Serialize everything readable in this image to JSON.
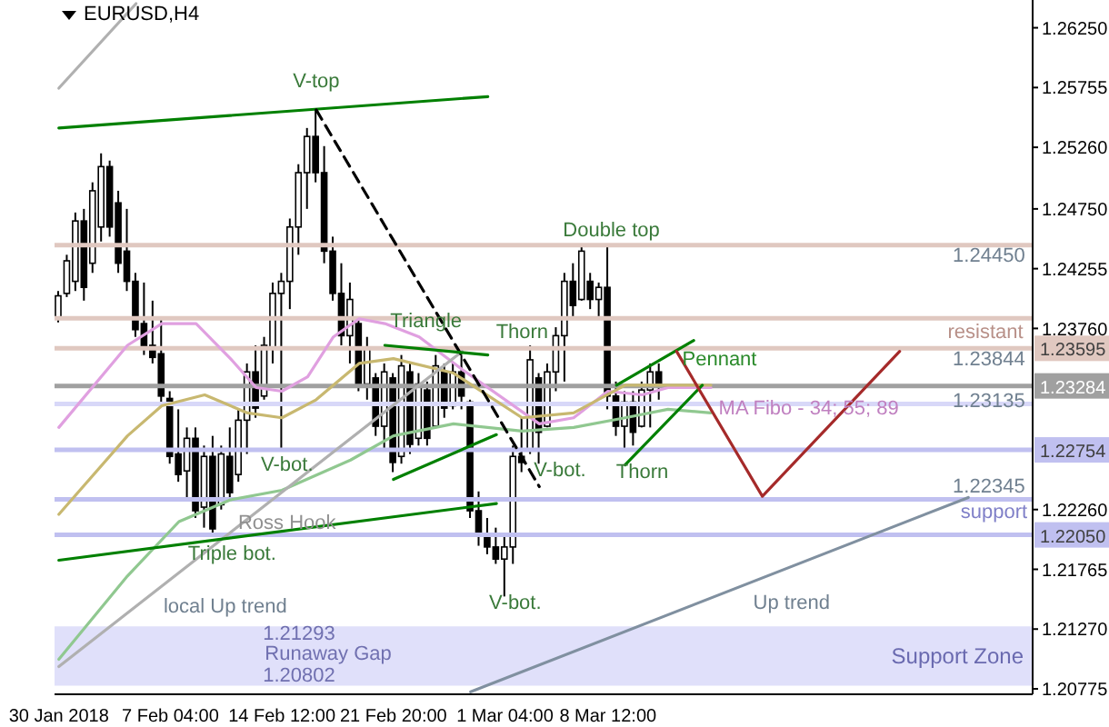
{
  "chart_data": {
    "type": "candlestick",
    "title": "EURUSD,H4",
    "color": "#000000",
    "categories": [
      "30 Jan 2018",
      null,
      null,
      null,
      null,
      null,
      null,
      null,
      null,
      null,
      null,
      null,
      null,
      "7 Feb 04:00",
      null,
      null,
      null,
      null,
      null,
      null,
      null,
      null,
      null,
      null,
      null,
      null,
      "14 Feb 12:00",
      null,
      null,
      null,
      null,
      null,
      null,
      null,
      null,
      null,
      null,
      null,
      null,
      "21 Feb 20:00",
      null,
      null,
      null,
      null,
      null,
      null,
      null,
      null,
      null,
      null,
      null,
      null,
      "1 Mar 04:00",
      null,
      null,
      null,
      null,
      null,
      null,
      null,
      null,
      null,
      null,
      null,
      "8 Mar 12:00",
      null,
      null,
      null,
      null,
      null,
      null,
      null,
      null,
      null,
      null,
      null,
      null,
      null,
      null,
      null,
      null,
      null,
      null,
      null,
      null,
      null,
      null,
      null,
      null,
      null,
      null,
      null,
      null,
      null,
      null,
      null,
      null,
      null,
      null,
      null,
      null,
      null,
      null,
      null,
      null,
      null,
      null,
      null,
      null,
      null,
      null,
      null,
      null,
      null
    ],
    "ohlc": [
      [
        1.2385,
        1.2407,
        1.2381,
        1.2403
      ],
      [
        1.2405,
        1.2437,
        1.2402,
        1.2432
      ],
      [
        1.2415,
        1.2472,
        1.2407,
        1.2465
      ],
      [
        1.2465,
        1.2475,
        1.2399,
        1.241
      ],
      [
        1.243,
        1.2497,
        1.2422,
        1.249
      ],
      [
        1.246,
        1.2521,
        1.2448,
        1.251
      ],
      [
        1.251,
        1.2515,
        1.2452,
        1.246
      ],
      [
        1.248,
        1.249,
        1.2422,
        1.243
      ],
      [
        1.244,
        1.2475,
        1.2407,
        1.2415
      ],
      [
        1.2415,
        1.2422,
        1.2369,
        1.2375
      ],
      [
        1.238,
        1.2414,
        1.2354,
        1.236
      ],
      [
        1.2362,
        1.2399,
        1.2347,
        1.2352
      ],
      [
        1.2355,
        1.2384,
        1.2314,
        1.232
      ],
      [
        1.2318,
        1.2324,
        1.2264,
        1.227
      ],
      [
        1.2272,
        1.2309,
        1.2249,
        1.2255
      ],
      [
        1.2258,
        1.2294,
        1.2234,
        1.2285
      ],
      [
        1.2285,
        1.2294,
        1.2219,
        1.2225
      ],
      [
        1.2228,
        1.2279,
        1.2211,
        1.227
      ],
      [
        1.227,
        1.2287,
        1.2204,
        1.221
      ],
      [
        1.223,
        1.2279,
        1.2226,
        1.2272
      ],
      [
        1.227,
        1.2294,
        1.2234,
        1.224
      ],
      [
        1.2255,
        1.2309,
        1.2249,
        1.23
      ],
      [
        1.23,
        1.2347,
        1.2272,
        1.234
      ],
      [
        1.234,
        1.2362,
        1.2302,
        1.231
      ],
      [
        1.232,
        1.2369,
        1.2317,
        1.2362
      ],
      [
        1.236,
        1.2414,
        1.2347,
        1.2405
      ],
      [
        1.2405,
        1.2422,
        1.2275,
        1.2415
      ],
      [
        1.2415,
        1.2467,
        1.2392,
        1.246
      ],
      [
        1.246,
        1.2512,
        1.2437,
        1.2505
      ],
      [
        1.2505,
        1.2542,
        1.2475,
        1.2535
      ],
      [
        1.2535,
        1.2557,
        1.2497,
        1.2505
      ],
      [
        1.2505,
        1.2527,
        1.243,
        1.244
      ],
      [
        1.244,
        1.2452,
        1.2399,
        1.2405
      ],
      [
        1.2405,
        1.243,
        1.2362,
        1.237
      ],
      [
        1.237,
        1.2414,
        1.2347,
        1.24
      ],
      [
        1.238,
        1.2384,
        1.2324,
        1.233
      ],
      [
        1.233,
        1.2369,
        1.2317,
        1.236
      ],
      [
        1.2335,
        1.2339,
        1.2287,
        1.2295
      ],
      [
        1.2295,
        1.2347,
        1.2276,
        1.234
      ],
      [
        1.2335,
        1.2339,
        1.2257,
        1.2265
      ],
      [
        1.227,
        1.2354,
        1.2264,
        1.2345
      ],
      [
        1.234,
        1.2347,
        1.2272,
        1.228
      ],
      [
        1.2285,
        1.2339,
        1.2279,
        1.233
      ],
      [
        1.2325,
        1.2332,
        1.2279,
        1.2285
      ],
      [
        1.2295,
        1.2354,
        1.2294,
        1.2345
      ],
      [
        1.234,
        1.2347,
        1.2302,
        1.231
      ],
      [
        1.2312,
        1.2347,
        1.2309,
        1.234
      ],
      [
        1.234,
        1.2354,
        1.2309,
        1.232
      ],
      [
        1.2315,
        1.2317,
        1.2219,
        1.2225
      ],
      [
        1.2225,
        1.2241,
        1.2196,
        1.2205
      ],
      [
        1.2205,
        1.2219,
        1.2189,
        1.2195
      ],
      [
        1.2195,
        1.2211,
        1.2181,
        1.2185
      ],
      [
        1.2185,
        1.2204,
        1.2154,
        1.2195
      ],
      [
        1.2195,
        1.2279,
        1.2181,
        1.227
      ],
      [
        1.227,
        1.2302,
        1.2257,
        1.2265
      ],
      [
        1.2275,
        1.2362,
        1.2272,
        1.235
      ],
      [
        1.2335,
        1.2339,
        1.2264,
        1.229
      ],
      [
        1.2295,
        1.2347,
        1.2294,
        1.234
      ],
      [
        1.234,
        1.2377,
        1.2324,
        1.237
      ],
      [
        1.237,
        1.2422,
        1.2332,
        1.2415
      ],
      [
        1.2415,
        1.243,
        1.2384,
        1.2395
      ],
      [
        1.24,
        1.2445,
        1.2399,
        1.244
      ],
      [
        1.2415,
        1.2422,
        1.2392,
        1.24
      ],
      [
        1.24,
        1.2414,
        1.2384,
        1.241
      ],
      [
        1.241,
        1.2445,
        1.2309,
        1.232
      ],
      [
        1.232,
        1.2332,
        1.2287,
        1.2295
      ],
      [
        1.2295,
        1.2324,
        1.2276,
        1.2315
      ],
      [
        1.2315,
        1.2324,
        1.2279,
        1.229
      ],
      [
        1.2295,
        1.2332,
        1.2294,
        1.2325
      ],
      [
        1.2325,
        1.2347,
        1.2294,
        1.234
      ],
      [
        1.234,
        1.2347,
        1.2317,
        1.2328
      ],
      null,
      null,
      null,
      null,
      null,
      null,
      null,
      null,
      null,
      null,
      null,
      null,
      null,
      null,
      null,
      null,
      null,
      null,
      null,
      null,
      null,
      null,
      null,
      null,
      null,
      null,
      null,
      null,
      null,
      null,
      null,
      null,
      null,
      null,
      null,
      null,
      null,
      null,
      null,
      null,
      null,
      null,
      null
    ],
    "series": [
      {
        "type": "line",
        "color": "#e0a0e0",
        "values": [
          1.2294,
          null,
          null,
          null,
          null,
          null,
          null,
          null,
          1.2362,
          null,
          null,
          null,
          1.238,
          null,
          null,
          null,
          1.238,
          null,
          null,
          null,
          1.2351,
          null,
          null,
          1.2327,
          null,
          null,
          1.2324,
          null,
          null,
          1.2336,
          null,
          null,
          1.2369,
          null,
          null,
          1.2384,
          null,
          null,
          1.238,
          null,
          null,
          null,
          1.2369,
          null,
          null,
          null,
          null,
          1.2342,
          null,
          null,
          null,
          null,
          null,
          null,
          null,
          null,
          1.2297,
          null,
          null,
          null,
          1.2302,
          null,
          null,
          null,
          1.2324,
          null,
          null,
          null,
          1.2321,
          null,
          null,
          1.2327,
          null,
          null,
          null,
          null,
          1.2327,
          null,
          null,
          null,
          null,
          null,
          null,
          null,
          null,
          null,
          null,
          null,
          null,
          null,
          null,
          null,
          null,
          null,
          null,
          null,
          null,
          null,
          null,
          null,
          null,
          null,
          null,
          null,
          null,
          null,
          null,
          null,
          null,
          null,
          null,
          null,
          null,
          null
        ]
      },
      {
        "type": "line",
        "color": "#c8b870",
        "values": [
          1.2222,
          null,
          null,
          null,
          null,
          null,
          null,
          null,
          1.2287,
          null,
          null,
          null,
          1.2312,
          null,
          null,
          null,
          null,
          1.2321,
          null,
          null,
          null,
          null,
          1.2306,
          null,
          null,
          null,
          1.2302,
          null,
          null,
          null,
          1.2317,
          null,
          null,
          null,
          null,
          1.2347,
          null,
          null,
          null,
          1.2351,
          null,
          null,
          null,
          null,
          null,
          null,
          1.2339,
          null,
          null,
          null,
          null,
          null,
          null,
          null,
          1.2302,
          null,
          null,
          null,
          null,
          null,
          1.2306,
          null,
          null,
          null,
          null,
          null,
          1.2329,
          null,
          null,
          null,
          null,
          1.2329,
          null,
          null,
          null,
          null,
          1.2329,
          null,
          null,
          null,
          null,
          null,
          null,
          null,
          null,
          null,
          null,
          null,
          null,
          null,
          null,
          null,
          null,
          null,
          null,
          null,
          null,
          null,
          null,
          null,
          null,
          null,
          null,
          null,
          null,
          null,
          null,
          null,
          null,
          null,
          null,
          null,
          null,
          null
        ]
      },
      {
        "type": "line",
        "color": "#90c890",
        "values": [
          1.2102,
          null,
          null,
          null,
          null,
          null,
          null,
          null,
          1.2171,
          null,
          null,
          null,
          null,
          null,
          1.2216,
          null,
          null,
          null,
          null,
          null,
          1.2234,
          null,
          null,
          null,
          null,
          null,
          1.2242,
          null,
          null,
          null,
          null,
          null,
          null,
          null,
          1.2267,
          null,
          null,
          null,
          null,
          1.2287,
          null,
          null,
          null,
          null,
          null,
          null,
          1.2297,
          null,
          null,
          null,
          null,
          null,
          null,
          null,
          1.2291,
          null,
          null,
          null,
          null,
          null,
          1.2294,
          null,
          null,
          null,
          null,
          null,
          1.2302,
          null,
          null,
          null,
          null,
          1.2309,
          null,
          null,
          null,
          null,
          1.2306,
          null,
          null,
          null,
          null,
          null,
          null,
          null,
          null,
          null,
          null,
          null,
          null,
          null,
          null,
          null,
          null,
          null,
          null,
          null,
          null,
          null,
          null,
          null,
          null,
          null,
          null,
          null,
          null,
          null,
          null,
          null,
          null,
          null,
          null,
          null,
          null,
          null
        ]
      },
      {
        "type": "line",
        "color": "#b0b0b0",
        "values": [
          1.2575,
          null,
          null,
          null,
          null,
          null,
          null,
          null,
          null,
          1.2645,
          null,
          null,
          null,
          null,
          null,
          null,
          null,
          null,
          null,
          null,
          null,
          null,
          null,
          null,
          null,
          null,
          null,
          null,
          null,
          null,
          null,
          null,
          null,
          null,
          null,
          null,
          null,
          null,
          null,
          null,
          null,
          null,
          null,
          null,
          null,
          null,
          null,
          null,
          null,
          null,
          null,
          null,
          null,
          null,
          null,
          null,
          null,
          null,
          null,
          null,
          null,
          null,
          null,
          null,
          null,
          null,
          null,
          null,
          null,
          null,
          null,
          null,
          null,
          null,
          null,
          null,
          null,
          null,
          null,
          null,
          null,
          null,
          null,
          null,
          null,
          null,
          null,
          null,
          null,
          null,
          null,
          null,
          null,
          null,
          null,
          null,
          null,
          null,
          null,
          null,
          null,
          null,
          null,
          null,
          null,
          null,
          null,
          null,
          null,
          null,
          null,
          null,
          null,
          null
        ]
      },
      {
        "type": "line",
        "color": "#b0b0b0",
        "values": [
          1.2096,
          null,
          null,
          null,
          null,
          null,
          null,
          null,
          null,
          null,
          null,
          null,
          null,
          null,
          null,
          null,
          null,
          null,
          null,
          null,
          null,
          null,
          null,
          null,
          null,
          null,
          null,
          null,
          null,
          null,
          null,
          null,
          null,
          null,
          null,
          null,
          null,
          null,
          null,
          null,
          null,
          null,
          null,
          null,
          null,
          null,
          null,
          1.2357,
          null,
          null,
          null,
          null,
          null,
          null,
          null,
          null,
          null,
          null,
          null,
          null,
          null,
          null,
          null,
          null,
          null,
          null,
          null,
          null,
          null,
          null,
          null,
          null,
          null,
          null,
          null,
          null,
          null,
          null,
          null,
          null,
          null,
          null,
          null,
          null,
          null,
          null,
          null,
          null,
          null,
          null,
          null,
          null,
          null,
          null,
          null,
          null,
          null,
          null,
          null,
          null,
          null,
          null,
          null,
          null,
          null,
          null,
          null,
          null,
          null,
          null,
          null,
          null,
          null,
          null
        ]
      },
      {
        "type": "line",
        "color": "#8090a0",
        "values": [
          null,
          null,
          null,
          null,
          null,
          null,
          null,
          null,
          null,
          null,
          null,
          null,
          null,
          null,
          null,
          null,
          null,
          null,
          null,
          null,
          null,
          null,
          null,
          null,
          null,
          null,
          null,
          null,
          null,
          null,
          null,
          null,
          null,
          null,
          null,
          null,
          null,
          null,
          null,
          null,
          null,
          null,
          null,
          null,
          null,
          null,
          null,
          null,
          1.2075,
          null,
          null,
          null,
          null,
          null,
          null,
          null,
          null,
          null,
          null,
          null,
          null,
          null,
          null,
          null,
          null,
          null,
          null,
          null,
          null,
          null,
          null,
          null,
          null,
          null,
          null,
          null,
          null,
          null,
          null,
          null,
          null,
          null,
          null,
          null,
          null,
          null,
          null,
          null,
          null,
          null,
          null,
          null,
          null,
          null,
          null,
          null,
          null,
          null,
          null,
          null,
          null,
          null,
          null,
          null,
          null,
          null,
          1.2236,
          null,
          null,
          null,
          null,
          null,
          null,
          null
        ]
      },
      {
        "type": "line",
        "color": "#008000",
        "values": [
          1.2542,
          null,
          null,
          null,
          null,
          null,
          null,
          null,
          null,
          null,
          null,
          null,
          null,
          null,
          null,
          null,
          null,
          null,
          null,
          null,
          null,
          null,
          null,
          null,
          null,
          null,
          null,
          null,
          null,
          null,
          null,
          null,
          null,
          null,
          null,
          null,
          null,
          null,
          null,
          null,
          null,
          null,
          null,
          null,
          null,
          null,
          null,
          null,
          null,
          null,
          1.2568,
          null,
          null,
          null,
          null,
          null,
          null,
          null,
          null,
          null,
          null,
          null,
          null,
          null,
          null,
          null,
          null,
          null,
          null,
          null,
          null,
          null,
          null,
          null,
          null,
          null,
          null,
          null,
          null,
          null,
          null,
          null,
          null,
          null,
          null,
          null,
          null,
          null,
          null,
          null,
          null,
          null,
          null,
          null,
          null,
          null,
          null,
          null,
          null,
          null,
          null,
          null,
          null,
          null,
          null,
          null,
          null,
          null,
          null,
          null,
          null,
          null,
          null,
          null
        ]
      },
      {
        "type": "line",
        "color": "#008000",
        "values": [
          1.2184,
          null,
          null,
          null,
          null,
          null,
          null,
          null,
          null,
          null,
          null,
          null,
          null,
          null,
          null,
          null,
          null,
          null,
          null,
          null,
          null,
          null,
          null,
          null,
          null,
          null,
          null,
          null,
          null,
          null,
          null,
          null,
          null,
          null,
          null,
          null,
          null,
          null,
          null,
          null,
          null,
          null,
          null,
          null,
          null,
          null,
          null,
          null,
          null,
          null,
          null,
          1.2231,
          null,
          null,
          null,
          null,
          null,
          null,
          null,
          null,
          null,
          null,
          null,
          null,
          null,
          null,
          null,
          null,
          null,
          null,
          null,
          null,
          null,
          null,
          null,
          null,
          null,
          null,
          null,
          null,
          null,
          null,
          null,
          null,
          null,
          null,
          null,
          null,
          null,
          null,
          null,
          null,
          null,
          null,
          null,
          null,
          null,
          null,
          null,
          null,
          null,
          null,
          null,
          null,
          null,
          null,
          null,
          null,
          null,
          null,
          null,
          null,
          null,
          null
        ]
      },
      {
        "type": "line",
        "color": "#000000",
        "line_style": "dashed",
        "values": [
          null,
          null,
          null,
          null,
          null,
          null,
          null,
          null,
          null,
          null,
          null,
          null,
          null,
          null,
          null,
          null,
          null,
          null,
          null,
          null,
          null,
          null,
          null,
          null,
          null,
          null,
          null,
          null,
          null,
          null,
          1.2557,
          null,
          null,
          null,
          null,
          null,
          null,
          null,
          null,
          null,
          null,
          null,
          null,
          null,
          null,
          null,
          null,
          null,
          null,
          null,
          null,
          null,
          null,
          null,
          null,
          null,
          1.2245,
          null,
          null,
          null,
          null,
          null,
          null,
          null,
          null,
          null,
          null,
          null,
          null,
          null,
          null,
          null,
          null,
          null,
          null,
          null,
          null,
          null,
          null,
          null,
          null,
          null,
          null,
          null,
          null,
          null,
          null,
          null,
          null,
          null,
          null,
          null,
          null,
          null,
          null,
          null,
          null,
          null,
          null,
          null,
          null,
          null,
          null,
          null,
          null,
          null,
          null,
          null,
          null,
          null,
          null,
          null,
          null,
          null
        ]
      },
      {
        "type": "line",
        "color": "#008000",
        "values": [
          null,
          null,
          null,
          null,
          null,
          null,
          null,
          null,
          null,
          null,
          null,
          null,
          null,
          null,
          null,
          null,
          null,
          null,
          null,
          null,
          null,
          null,
          null,
          null,
          null,
          null,
          null,
          null,
          null,
          null,
          null,
          null,
          null,
          null,
          null,
          null,
          null,
          null,
          1.2362,
          null,
          null,
          null,
          null,
          null,
          null,
          null,
          null,
          null,
          null,
          null,
          1.2354,
          null,
          null,
          null,
          null,
          null,
          null,
          null,
          null,
          null,
          null,
          null,
          null,
          null,
          null,
          null,
          null,
          null,
          null,
          null,
          null,
          null,
          null,
          null,
          null,
          null,
          null,
          null,
          null,
          null,
          null,
          null,
          null,
          null,
          null,
          null,
          null,
          null,
          null,
          null,
          null,
          null,
          null,
          null,
          null,
          null,
          null,
          null,
          null,
          null,
          null,
          null,
          null,
          null,
          null,
          null,
          null,
          null,
          null,
          null,
          null,
          null,
          null,
          null
        ]
      },
      {
        "type": "line",
        "color": "#008000",
        "values": [
          null,
          null,
          null,
          null,
          null,
          null,
          null,
          null,
          null,
          null,
          null,
          null,
          null,
          null,
          null,
          null,
          null,
          null,
          null,
          null,
          null,
          null,
          null,
          null,
          null,
          null,
          null,
          null,
          null,
          null,
          null,
          null,
          null,
          null,
          null,
          null,
          null,
          null,
          null,
          1.2251,
          null,
          null,
          null,
          null,
          null,
          null,
          null,
          null,
          null,
          null,
          null,
          1.2288,
          null,
          null,
          null,
          null,
          null,
          null,
          null,
          null,
          null,
          null,
          null,
          null,
          null,
          null,
          null,
          null,
          null,
          null,
          null,
          null,
          null,
          null,
          null,
          null,
          null,
          null,
          null,
          null,
          null,
          null,
          null,
          null,
          null,
          null,
          null,
          null,
          null,
          null,
          null,
          null,
          null,
          null,
          null,
          null,
          null,
          null,
          null,
          null,
          null,
          null,
          null,
          null,
          null,
          null,
          null,
          null,
          null,
          null,
          null,
          null,
          null,
          null
        ]
      },
      {
        "type": "line",
        "color": "#008000",
        "values": [
          null,
          null,
          null,
          null,
          null,
          null,
          null,
          null,
          null,
          null,
          null,
          null,
          null,
          null,
          null,
          null,
          null,
          null,
          null,
          null,
          null,
          null,
          null,
          null,
          null,
          null,
          null,
          null,
          null,
          null,
          null,
          null,
          null,
          null,
          null,
          null,
          null,
          null,
          null,
          null,
          null,
          null,
          null,
          null,
          null,
          null,
          null,
          null,
          null,
          null,
          null,
          null,
          null,
          null,
          null,
          null,
          null,
          null,
          null,
          null,
          null,
          null,
          null,
          null,
          null,
          1.2329,
          null,
          null,
          null,
          null,
          null,
          null,
          null,
          null,
          1.2366,
          null,
          null,
          null,
          null,
          null,
          null,
          null,
          null,
          null,
          null,
          null,
          null,
          null,
          null,
          null,
          null,
          null,
          null,
          null,
          null,
          null,
          null,
          null,
          null,
          null,
          null,
          null,
          null,
          null,
          null,
          null,
          null,
          null,
          null,
          null,
          null,
          null,
          null,
          null
        ]
      },
      {
        "type": "line",
        "color": "#008000",
        "values": [
          null,
          null,
          null,
          null,
          null,
          null,
          null,
          null,
          null,
          null,
          null,
          null,
          null,
          null,
          null,
          null,
          null,
          null,
          null,
          null,
          null,
          null,
          null,
          null,
          null,
          null,
          null,
          null,
          null,
          null,
          null,
          null,
          null,
          null,
          null,
          null,
          null,
          null,
          null,
          null,
          null,
          null,
          null,
          null,
          null,
          null,
          null,
          null,
          null,
          null,
          null,
          null,
          null,
          null,
          null,
          null,
          null,
          null,
          null,
          null,
          null,
          null,
          null,
          null,
          null,
          null,
          1.2263,
          null,
          null,
          null,
          null,
          null,
          null,
          null,
          null,
          1.2329,
          null,
          null,
          null,
          null,
          null,
          null,
          null,
          null,
          null,
          null,
          null,
          null,
          null,
          null,
          null,
          null,
          null,
          null,
          null,
          null,
          null,
          null,
          null,
          null,
          null,
          null,
          null,
          null,
          null,
          null,
          null,
          null,
          null,
          null,
          null,
          null,
          null,
          null
        ]
      },
      {
        "type": "line",
        "color": "#a52a2a",
        "values": [
          null,
          null,
          null,
          null,
          null,
          null,
          null,
          null,
          null,
          null,
          null,
          null,
          null,
          null,
          null,
          null,
          null,
          null,
          null,
          null,
          null,
          null,
          null,
          null,
          null,
          null,
          null,
          null,
          null,
          null,
          null,
          null,
          null,
          null,
          null,
          null,
          null,
          null,
          null,
          null,
          null,
          null,
          null,
          null,
          null,
          null,
          null,
          null,
          null,
          null,
          null,
          null,
          null,
          null,
          null,
          null,
          null,
          null,
          null,
          null,
          null,
          null,
          null,
          null,
          null,
          null,
          null,
          null,
          null,
          null,
          null,
          null,
          1.2357,
          null,
          null,
          null,
          null,
          null,
          null,
          null,
          null,
          null,
          1.2237,
          null,
          null,
          null,
          null,
          null,
          null,
          null,
          null,
          null,
          null,
          null,
          null,
          null,
          null,
          null,
          1.2357,
          null,
          null,
          null,
          null,
          null,
          null,
          null,
          null,
          null,
          null,
          null,
          null,
          null,
          null,
          null
        ]
      }
    ],
    "ref_lines": [
      {
        "axis": "y",
        "value": 1.2445,
        "color": "#e0c8c0"
      },
      {
        "axis": "y",
        "value": 1.23844,
        "color": "#e0c8c0"
      },
      {
        "axis": "y",
        "value": 1.23595,
        "label": "1.23595",
        "color": "#e0c8c0"
      },
      {
        "axis": "y",
        "value": 1.23284,
        "label": "1.23284",
        "color": "#a0a0a0"
      },
      {
        "axis": "y",
        "value": 1.23135,
        "color": "#d8d8f8"
      },
      {
        "axis": "y",
        "value": 1.22754,
        "label": "1.22754",
        "color": "#c0c0f0"
      },
      {
        "axis": "y",
        "value": 1.22345,
        "color": "#c0c0f0"
      },
      {
        "axis": "y",
        "value": 1.2205,
        "label": "1.22050",
        "color": "#c0c0f0"
      }
    ],
    "bands": [
      {
        "axis": "y",
        "from": 1.20802,
        "to": 1.21293,
        "label": "Support Zone",
        "color": "#e0e0fa"
      }
    ],
    "annotations": [
      "V-top",
      "Triangle",
      "Thorn",
      "Double top",
      "Pennant",
      "Thorn",
      "V-bot.",
      "V-bot.",
      "V-bot.",
      "Ross Hook",
      "Triple bot.",
      "local Up trend",
      "Up trend",
      "MA Fibo - 34; 55; 89",
      "resistant",
      "support",
      "1.24450",
      "1.23844",
      "1.23135",
      "1.22345",
      "1.21293",
      "Runaway Gap",
      "1.20802"
    ],
    "ylim": [
      1.2073,
      1.2648
    ],
    "yticks": [
      {
        "value": 1.2625,
        "label": "1.26250"
      },
      {
        "value": 1.25755,
        "label": "1.25755"
      },
      {
        "value": 1.2526,
        "label": "1.25260"
      },
      {
        "value": 1.2475,
        "label": "1.24750"
      },
      {
        "value": 1.24255,
        "label": "1.24255"
      },
      {
        "value": 1.2376,
        "label": "1.23760"
      },
      {
        "value": 1.2226,
        "label": "1.22260"
      },
      {
        "value": 1.21765,
        "label": "1.21765"
      },
      {
        "value": 1.2127,
        "label": "1.21270"
      },
      {
        "value": 1.20775,
        "label": "1.20775"
      }
    ]
  }
}
